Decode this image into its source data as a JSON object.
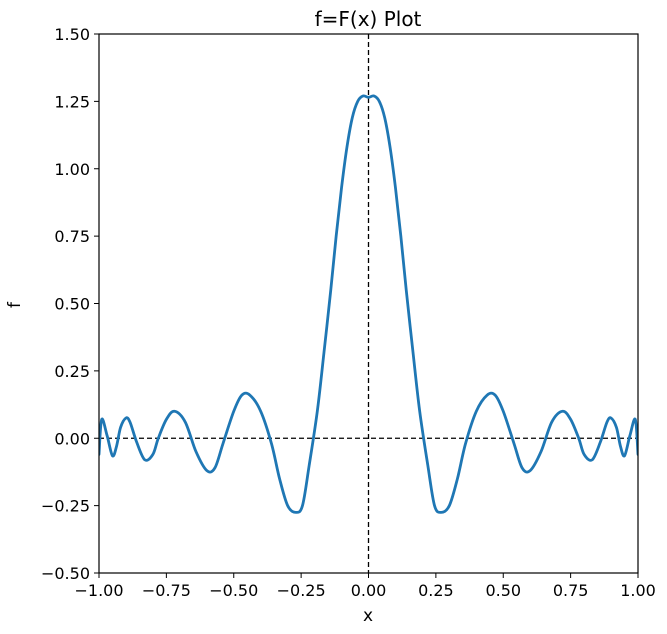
{
  "chart_data": {
    "type": "line",
    "title": "f=F(x) Plot",
    "xlabel": "x",
    "ylabel": "f",
    "xlim": [
      -1.0,
      1.0
    ],
    "ylim": [
      -0.5,
      1.5
    ],
    "xticks": [
      -1.0,
      -0.75,
      -0.5,
      -0.25,
      0.0,
      0.25,
      0.5,
      0.75,
      1.0
    ],
    "xtick_labels": [
      "−1.00",
      "−0.75",
      "−0.50",
      "−0.25",
      "0.00",
      "0.25",
      "0.50",
      "0.75",
      "1.00"
    ],
    "yticks": [
      -0.5,
      -0.25,
      0.0,
      0.25,
      0.5,
      0.75,
      1.0,
      1.25,
      1.5
    ],
    "ytick_labels": [
      "−0.50",
      "−0.25",
      "0.00",
      "0.25",
      "0.50",
      "0.75",
      "1.00",
      "1.25",
      "1.50"
    ],
    "grid": false,
    "reference_lines": [
      {
        "orientation": "horizontal",
        "value": 0.0,
        "style": "dashed",
        "color": "#000000"
      },
      {
        "orientation": "vertical",
        "value": 0.0,
        "style": "dashed",
        "color": "#000000"
      }
    ],
    "series": [
      {
        "color": "#1f77b4",
        "x": [
          -1.0,
          -0.99,
          -0.97,
          -0.95,
          -0.935,
          -0.92,
          -0.9,
          -0.885,
          -0.86,
          -0.83,
          -0.8,
          -0.78,
          -0.75,
          -0.72,
          -0.68,
          -0.64,
          -0.6,
          -0.57,
          -0.54,
          -0.5,
          -0.47,
          -0.44,
          -0.4,
          -0.36,
          -0.33,
          -0.3,
          -0.27,
          -0.245,
          -0.22,
          -0.19,
          -0.165,
          -0.14,
          -0.12,
          -0.1,
          -0.08,
          -0.06,
          -0.04,
          -0.02,
          0.0,
          0.02,
          0.04,
          0.06,
          0.08,
          0.1,
          0.12,
          0.14,
          0.165,
          0.19,
          0.22,
          0.245,
          0.27,
          0.3,
          0.33,
          0.36,
          0.4,
          0.44,
          0.47,
          0.5,
          0.54,
          0.57,
          0.6,
          0.64,
          0.68,
          0.72,
          0.75,
          0.78,
          0.8,
          0.83,
          0.86,
          0.885,
          0.9,
          0.92,
          0.935,
          0.95,
          0.97,
          0.99,
          1.0
        ],
        "y": [
          -0.06,
          0.07,
          0.01,
          -0.065,
          -0.03,
          0.04,
          0.075,
          0.06,
          -0.015,
          -0.08,
          -0.06,
          0.0,
          0.07,
          0.1,
          0.06,
          -0.05,
          -0.12,
          -0.11,
          -0.02,
          0.1,
          0.16,
          0.16,
          0.1,
          -0.02,
          -0.15,
          -0.25,
          -0.275,
          -0.25,
          -0.1,
          0.1,
          0.32,
          0.55,
          0.75,
          0.93,
          1.08,
          1.19,
          1.25,
          1.27,
          1.265,
          1.27,
          1.25,
          1.19,
          1.08,
          0.93,
          0.75,
          0.55,
          0.32,
          0.1,
          -0.1,
          -0.25,
          -0.275,
          -0.25,
          -0.15,
          -0.02,
          0.1,
          0.16,
          0.16,
          0.1,
          -0.02,
          -0.11,
          -0.12,
          -0.05,
          0.06,
          0.1,
          0.07,
          0.0,
          -0.06,
          -0.08,
          -0.015,
          0.06,
          0.075,
          0.04,
          -0.03,
          -0.065,
          0.01,
          0.07,
          -0.06
        ]
      }
    ]
  }
}
